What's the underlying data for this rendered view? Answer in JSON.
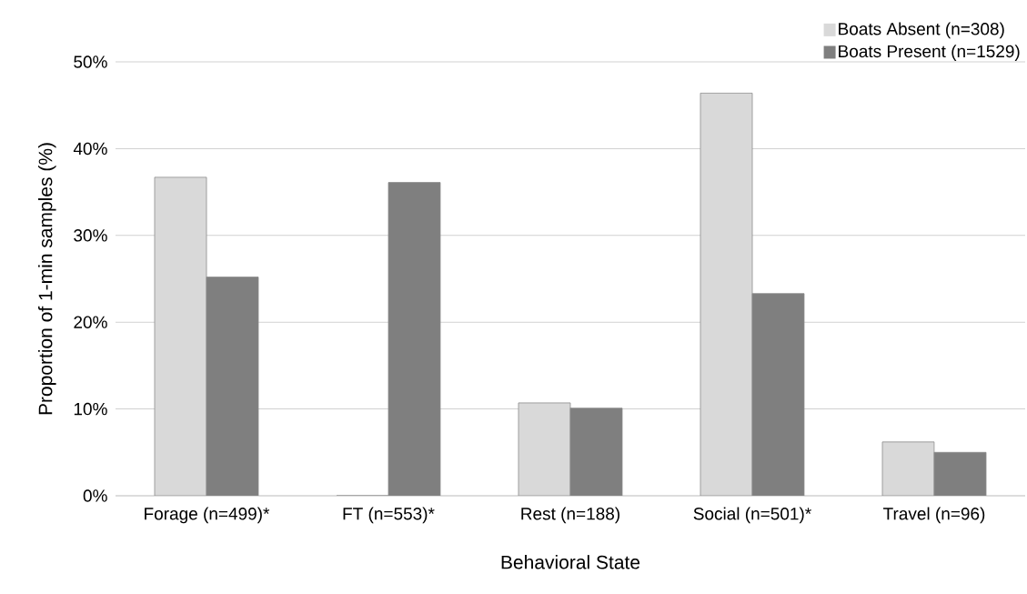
{
  "chart_data": {
    "type": "bar",
    "xlabel": "Behavioral State",
    "ylabel": "Proportion of  1-min samples (%)",
    "categories": [
      "Forage (n=499)*",
      "FT (n=553)*",
      "Rest (n=188)",
      "Social (n=501)*",
      "Travel (n=96)"
    ],
    "series": [
      {
        "name": "Boats Absent (n=308)",
        "color": "#d9d9d9",
        "values": [
          36.7,
          0,
          10.7,
          46.4,
          6.2
        ]
      },
      {
        "name": "Boats Present (n=1529)",
        "color": "#7f7f7f",
        "values": [
          25.2,
          36.1,
          10.1,
          23.3,
          5.0
        ]
      }
    ],
    "ylim": [
      0,
      50
    ],
    "yticks": [
      {
        "value": 0,
        "label": "0%"
      },
      {
        "value": 10,
        "label": "10%"
      },
      {
        "value": 20,
        "label": "20%"
      },
      {
        "value": 30,
        "label": "30%"
      },
      {
        "value": 40,
        "label": "40%"
      },
      {
        "value": 50,
        "label": "50%"
      }
    ],
    "grid": "y",
    "legend": "top right"
  }
}
